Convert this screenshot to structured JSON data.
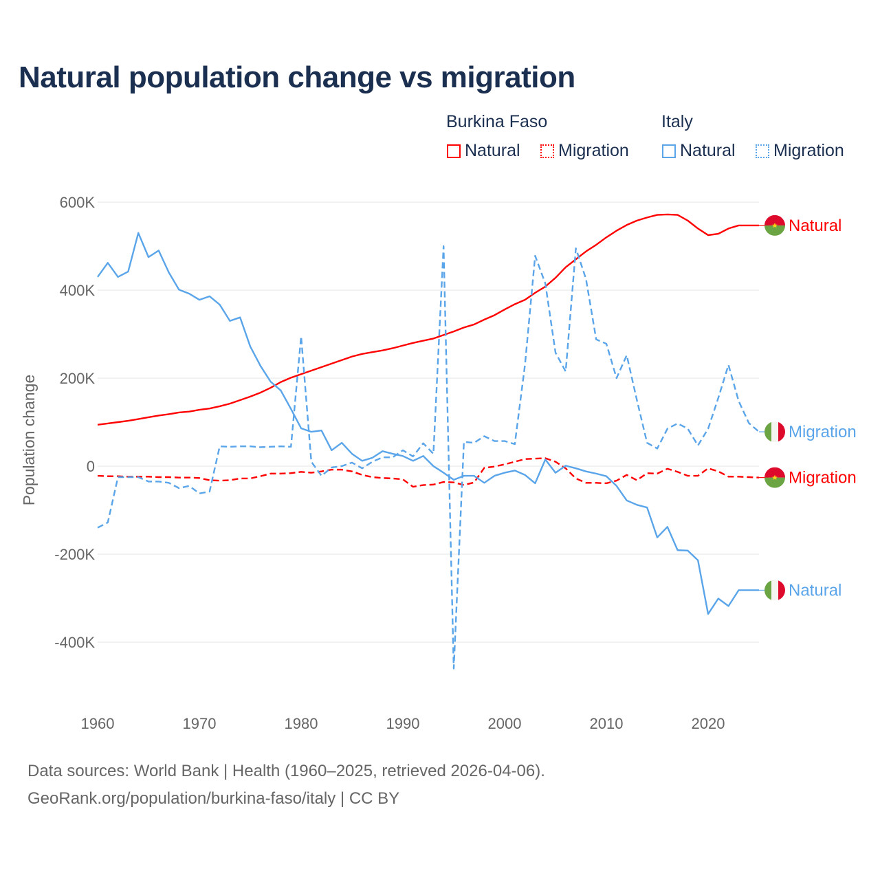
{
  "title": "Natural population change vs migration",
  "legend": {
    "groups": [
      {
        "name": "Burkina Faso",
        "items": [
          "Natural",
          "Migration"
        ]
      },
      {
        "name": "Italy",
        "items": [
          "Natural",
          "Migration"
        ]
      }
    ]
  },
  "footer": {
    "line1": "Data sources: World Bank | Health (1960–2025, retrieved 2026-04-06).",
    "line2": "GeoRank.org/population/burkina-faso/italy | CC BY"
  },
  "colors": {
    "burkina": "#ff0000",
    "italy": "#5aa5ea",
    "title": "#1b2f50",
    "grid": "#e6e6e6"
  },
  "chart_data": {
    "type": "line",
    "title": "Natural population change vs migration",
    "xlabel": "",
    "ylabel": "Population change",
    "xlim": [
      1960,
      2025
    ],
    "ylim": [
      -460,
      600
    ],
    "yunit": "thousands",
    "x_ticks": [
      "1960",
      "1970",
      "1980",
      "1990",
      "2000",
      "2010",
      "2020"
    ],
    "y_ticks": [
      {
        "v": 600,
        "label": "600K"
      },
      {
        "v": 400,
        "label": "400K"
      },
      {
        "v": 200,
        "label": "200K"
      },
      {
        "v": 0,
        "label": "0"
      },
      {
        "v": -200,
        "label": "-200K"
      },
      {
        "v": -400,
        "label": "-400K"
      }
    ],
    "grid": true,
    "x_start": 1960,
    "series": [
      {
        "name": "Burkina Faso Natural",
        "country": "burkina",
        "style": "solid",
        "end_label": "Natural",
        "values": [
          94,
          97,
          100,
          103,
          107,
          111,
          115,
          118,
          122,
          124,
          128,
          131,
          136,
          142,
          150,
          158,
          167,
          178,
          191,
          201,
          209,
          217,
          225,
          233,
          241,
          249,
          255,
          259,
          263,
          268,
          274,
          280,
          285,
          290,
          298,
          306,
          315,
          322,
          333,
          343,
          356,
          368,
          378,
          394,
          408,
          428,
          452,
          470,
          488,
          503,
          520,
          535,
          548,
          558,
          565,
          571,
          572,
          571,
          558,
          540,
          525,
          528,
          540,
          547,
          547,
          547
        ]
      },
      {
        "name": "Burkina Faso Migration",
        "country": "burkina",
        "style": "dashed",
        "end_label": "Migration",
        "values": [
          -22,
          -23,
          -23,
          -24,
          -24,
          -24,
          -25,
          -25,
          -26,
          -26,
          -27,
          -32,
          -33,
          -32,
          -28,
          -28,
          -23,
          -17,
          -17,
          -16,
          -13,
          -15,
          -12,
          -8,
          -8,
          -12,
          -20,
          -25,
          -27,
          -28,
          -30,
          -47,
          -43,
          -42,
          -36,
          -37,
          -43,
          -37,
          -4,
          -1,
          4,
          10,
          16,
          17,
          18,
          10,
          -5,
          -28,
          -38,
          -38,
          -39,
          -33,
          -20,
          -32,
          -16,
          -17,
          -6,
          -13,
          -22,
          -22,
          -5,
          -12,
          -24,
          -24,
          -25,
          -26
        ]
      },
      {
        "name": "Italy Natural",
        "country": "italy",
        "style": "solid",
        "end_label": "Natural",
        "values": [
          430,
          462,
          430,
          442,
          530,
          475,
          490,
          440,
          401,
          392,
          378,
          386,
          367,
          330,
          338,
          272,
          228,
          192,
          172,
          130,
          86,
          78,
          81,
          36,
          53,
          28,
          12,
          19,
          34,
          28,
          23,
          12,
          23,
          0,
          -15,
          -31,
          -22,
          -22,
          -38,
          -22,
          -15,
          -10,
          -20,
          -39,
          15,
          -15,
          1,
          -5,
          -12,
          -17,
          -23,
          -45,
          -78,
          -88,
          -94,
          -162,
          -138,
          -191,
          -192,
          -214,
          -336,
          -301,
          -318,
          -282,
          -282,
          -282
        ]
      },
      {
        "name": "Italy Migration",
        "country": "italy",
        "style": "dashed",
        "end_label": "Migration",
        "values": [
          -140,
          -128,
          -25,
          -25,
          -25,
          -35,
          -35,
          -38,
          -50,
          -45,
          -62,
          -58,
          45,
          44,
          45,
          45,
          43,
          44,
          45,
          44,
          295,
          10,
          -22,
          -3,
          0,
          8,
          -5,
          10,
          20,
          20,
          36,
          22,
          52,
          28,
          500,
          -460,
          55,
          53,
          68,
          57,
          57,
          50,
          230,
          478,
          415,
          258,
          215,
          495,
          425,
          288,
          278,
          200,
          252,
          150,
          53,
          40,
          85,
          97,
          85,
          47,
          85,
          155,
          230,
          148,
          98,
          78
        ]
      }
    ]
  }
}
